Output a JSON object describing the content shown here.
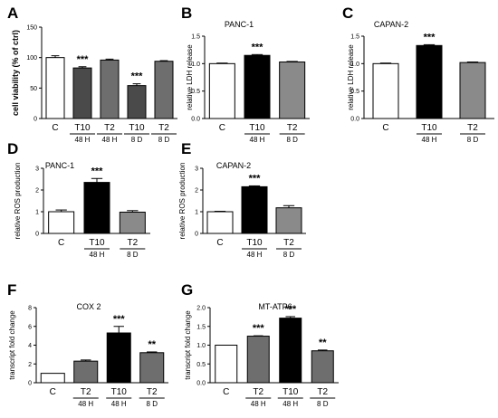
{
  "colors": {
    "white": "#ffffff",
    "black": "#000000",
    "darkgray": "#4a4a4a",
    "midgray": "#6e6e6e",
    "lightgray": "#8a8a8a"
  },
  "chart_data": [
    {
      "panel": "A",
      "type": "bar",
      "title": "",
      "ylabel": "cell viability (% of ctrl)",
      "ylim": [
        0,
        150
      ],
      "yticks": [
        0,
        50,
        100,
        150
      ],
      "categories": [
        "C",
        "T10",
        "T2",
        "T10",
        "T2"
      ],
      "sublabels": [
        "",
        "48 H",
        "48 H",
        "8 D",
        "8 D"
      ],
      "values": [
        100,
        83,
        96,
        54,
        94
      ],
      "errors": [
        3,
        2,
        1.5,
        3,
        1
      ],
      "fills": [
        "white",
        "darkgray",
        "midgray",
        "darkgray",
        "midgray"
      ],
      "annotations": [
        "",
        "***",
        "",
        "***",
        ""
      ]
    },
    {
      "panel": "B",
      "type": "bar",
      "title": "PANC-1",
      "ylabel": "relative LDH release",
      "ylim": [
        0,
        1.5
      ],
      "yticks": [
        0,
        0.5,
        1.0,
        1.5
      ],
      "categories": [
        "C",
        "T10",
        "T2"
      ],
      "sublabels": [
        "",
        "48 H",
        "8 D"
      ],
      "values": [
        1.0,
        1.15,
        1.03
      ],
      "errors": [
        0.01,
        0.015,
        0.01
      ],
      "fills": [
        "white",
        "black",
        "lightgray"
      ],
      "annotations": [
        "",
        "***",
        ""
      ]
    },
    {
      "panel": "C",
      "type": "bar",
      "title": "CAPAN-2",
      "ylabel": "relative LDH release",
      "ylim": [
        0,
        1.5
      ],
      "yticks": [
        0,
        0.5,
        1.0,
        1.5
      ],
      "categories": [
        "C",
        "T10",
        "T2"
      ],
      "sublabels": [
        "",
        "48 H",
        "8 D"
      ],
      "values": [
        1.0,
        1.33,
        1.02
      ],
      "errors": [
        0.01,
        0.015,
        0.01
      ],
      "fills": [
        "white",
        "black",
        "lightgray"
      ],
      "annotations": [
        "",
        "***",
        ""
      ]
    },
    {
      "panel": "D",
      "type": "bar",
      "title": "PANC-1",
      "ylabel": "relative ROS production",
      "ylim": [
        0,
        3
      ],
      "yticks": [
        0,
        1,
        2,
        3
      ],
      "categories": [
        "C",
        "T10",
        "T2"
      ],
      "sublabels": [
        "",
        "48 H",
        "8 D"
      ],
      "values": [
        1.0,
        2.35,
        0.98
      ],
      "errors": [
        0.08,
        0.18,
        0.07
      ],
      "fills": [
        "white",
        "black",
        "lightgray"
      ],
      "annotations": [
        "",
        "***",
        ""
      ]
    },
    {
      "panel": "E",
      "type": "bar",
      "title": "CAPAN-2",
      "ylabel": "relative ROS production",
      "ylim": [
        0,
        3
      ],
      "yticks": [
        0,
        1,
        2,
        3
      ],
      "categories": [
        "C",
        "T10",
        "T2"
      ],
      "sublabels": [
        "",
        "48 H",
        "8 D"
      ],
      "values": [
        1.0,
        2.15,
        1.18
      ],
      "errors": [
        0.02,
        0.04,
        0.1
      ],
      "fills": [
        "white",
        "black",
        "lightgray"
      ],
      "annotations": [
        "",
        "***",
        ""
      ]
    },
    {
      "panel": "F",
      "type": "bar",
      "title": "COX 2",
      "ylabel": "transcript fold change",
      "ylim": [
        0,
        8
      ],
      "yticks": [
        0,
        2,
        4,
        6,
        8
      ],
      "categories": [
        "C",
        "T2",
        "T10",
        "T2"
      ],
      "sublabels": [
        "",
        "48 H",
        "48 H",
        "8 D"
      ],
      "values": [
        1.0,
        2.3,
        5.3,
        3.2
      ],
      "errors": [
        0,
        0.12,
        0.7,
        0.08
      ],
      "fills": [
        "white",
        "midgray",
        "black",
        "midgray"
      ],
      "annotations": [
        "",
        "",
        "***",
        "**"
      ]
    },
    {
      "panel": "G",
      "type": "bar",
      "title": "MT-ATP6",
      "ylabel": "transcript fold change",
      "ylim": [
        0,
        2.0
      ],
      "yticks": [
        0,
        0.5,
        1.0,
        1.5,
        2.0
      ],
      "categories": [
        "C",
        "T2",
        "T10",
        "T2"
      ],
      "sublabels": [
        "",
        "48 H",
        "48 H",
        "8 D"
      ],
      "values": [
        1.0,
        1.24,
        1.72,
        0.85
      ],
      "errors": [
        0,
        0.01,
        0.04,
        0.02
      ],
      "fills": [
        "white",
        "midgray",
        "black",
        "midgray"
      ],
      "annotations": [
        "",
        "***",
        "***",
        "**"
      ]
    }
  ]
}
